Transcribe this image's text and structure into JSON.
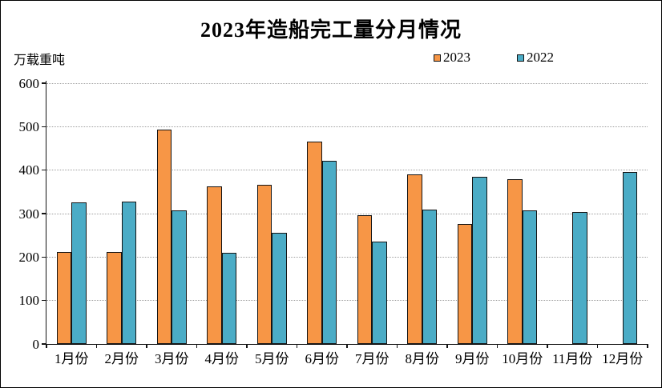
{
  "window": {
    "background": "#ffffff",
    "border_color": "#000000"
  },
  "chart_data": {
    "type": "bar",
    "title": "2023年造船完工量分月情况",
    "ylabel": "万载重吨",
    "xlabel": "",
    "categories": [
      "1月份",
      "2月份",
      "3月份",
      "4月份",
      "5月份",
      "6月份",
      "7月份",
      "8月份",
      "9月份",
      "10月份",
      "11月份",
      "12月份"
    ],
    "series": [
      {
        "name": "2023",
        "color": "#F79646",
        "values": [
          211,
          212,
          494,
          363,
          367,
          466,
          296,
          390,
          276,
          380,
          null,
          null
        ]
      },
      {
        "name": "2022",
        "color": "#4BACC6",
        "values": [
          325,
          327,
          308,
          210,
          256,
          421,
          236,
          310,
          385,
          308,
          303,
          396
        ]
      }
    ],
    "ylim": [
      0,
      600
    ],
    "yticks": [
      0,
      100,
      200,
      300,
      400,
      500,
      600
    ],
    "grid": "horizontal-dotted",
    "legend_position": "top-right",
    "bar_border_color": "#141414",
    "axis_color": "#141414"
  }
}
